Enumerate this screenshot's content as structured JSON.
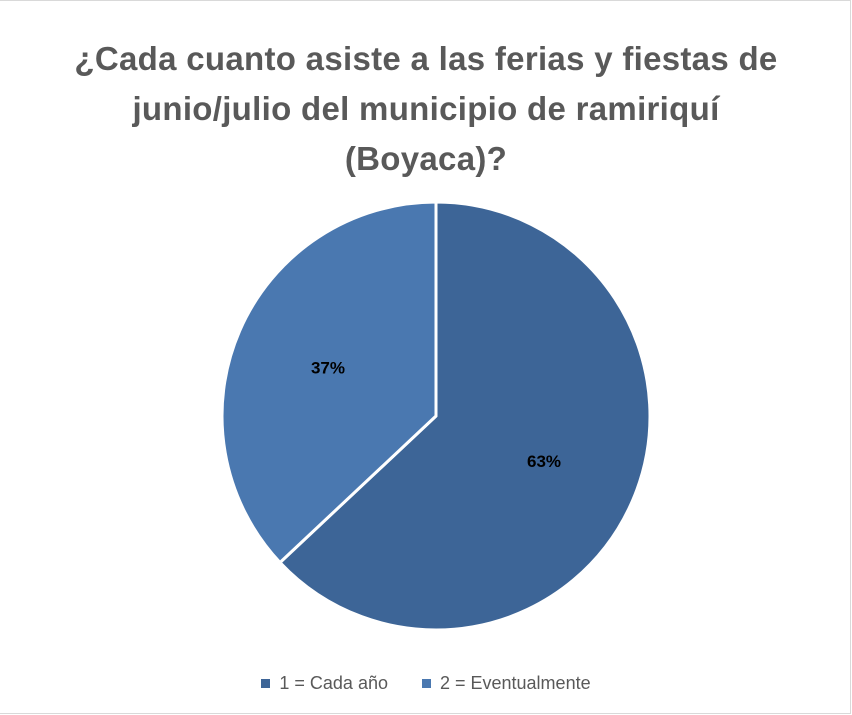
{
  "chart_data": {
    "type": "pie",
    "title_lines": [
      "¿Cada cuanto asiste a las ferias y fiestas de",
      "junio/julio del municipio de ramiriquí",
      "(Boyaca)?"
    ],
    "categories": [
      "1 = Cada año",
      "2 = Eventualmente"
    ],
    "values": [
      63,
      37
    ],
    "data_labels": [
      "63%",
      "37%"
    ],
    "colors": [
      "#3d6597",
      "#4a78b0"
    ],
    "legend_position": "bottom"
  }
}
